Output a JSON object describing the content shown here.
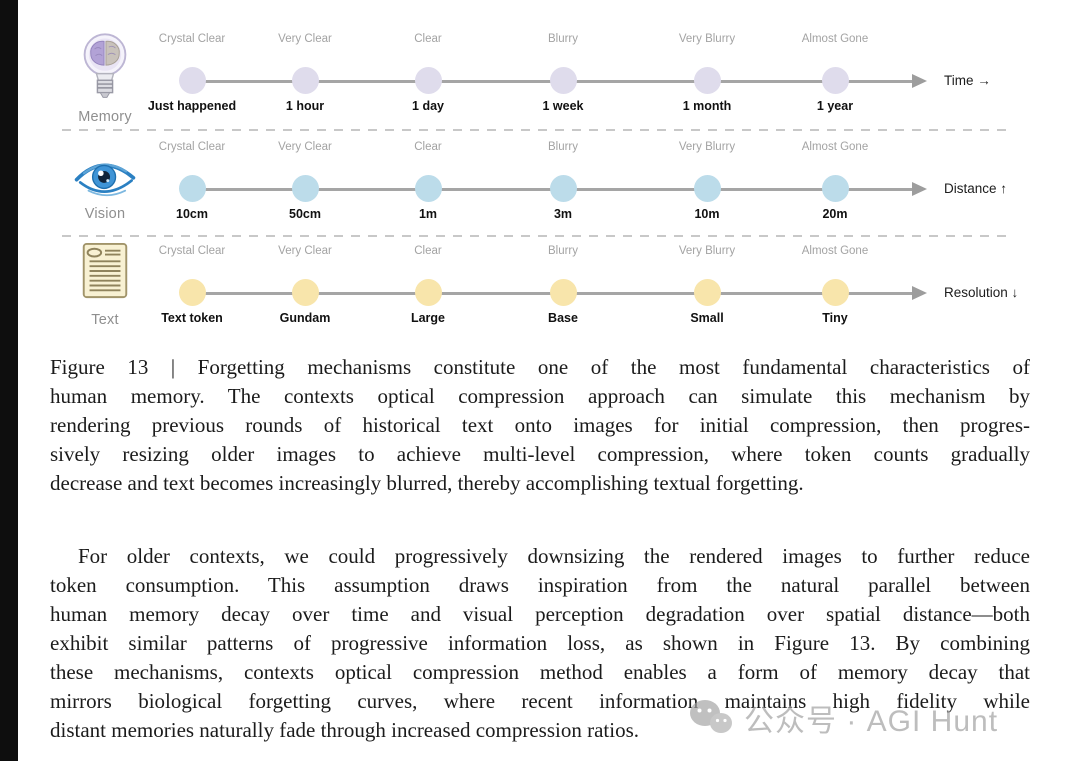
{
  "figure": {
    "quality_labels": [
      "Crystal Clear",
      "Very Clear",
      "Clear",
      "Blurry",
      "Very Blurry",
      "Almost Gone"
    ],
    "rows": [
      {
        "name": "Memory",
        "icon": "brain-bulb-icon",
        "dot_color": "#dfdcec",
        "axis_label": "Time →",
        "stations": [
          "Just happened",
          "1 hour",
          "1 day",
          "1 week",
          "1 month",
          "1 year"
        ]
      },
      {
        "name": "Vision",
        "icon": "eye-icon",
        "dot_color": "#bcdcea",
        "axis_label": "Distance ↑",
        "stations": [
          "10cm",
          "50cm",
          "1m",
          "3m",
          "10m",
          "20m"
        ]
      },
      {
        "name": "Text",
        "icon": "document-icon",
        "dot_color": "#f8e5ab",
        "axis_label": "Resolution ↓",
        "stations": [
          "Text token",
          "Gundam",
          "Large",
          "Base",
          "Small",
          "Tiny"
        ]
      }
    ],
    "line_color": "#a5a5a5"
  },
  "caption": {
    "lines": [
      "Figure 13 | Forgetting mechanisms constitute one of the most fundamental characteristics of",
      "human memory. The contexts optical compression approach can simulate this mechanism by",
      "rendering previous rounds of historical text onto images for initial compression, then progres-",
      "sively resizing older images to achieve multi-level compression, where token counts gradually",
      "decrease and text becomes increasingly blurred, thereby accomplishing textual forgetting."
    ]
  },
  "body": {
    "lines": [
      "For older contexts, we could progressively downsizing the rendered images to further reduce",
      "token consumption.  This assumption draws inspiration from the natural parallel between",
      "human memory decay over time and visual perception degradation over spatial distance—both",
      "exhibit similar patterns of progressive information loss, as shown in Figure 13. By combining",
      "these mechanisms, contexts optical compression method enables a form of memory decay that",
      "mirrors biological forgetting curves, where recent information maintains high fidelity while",
      "distant memories naturally fade through increased compression ratios."
    ]
  },
  "watermark": {
    "text": "公众号 · AGI Hunt"
  }
}
